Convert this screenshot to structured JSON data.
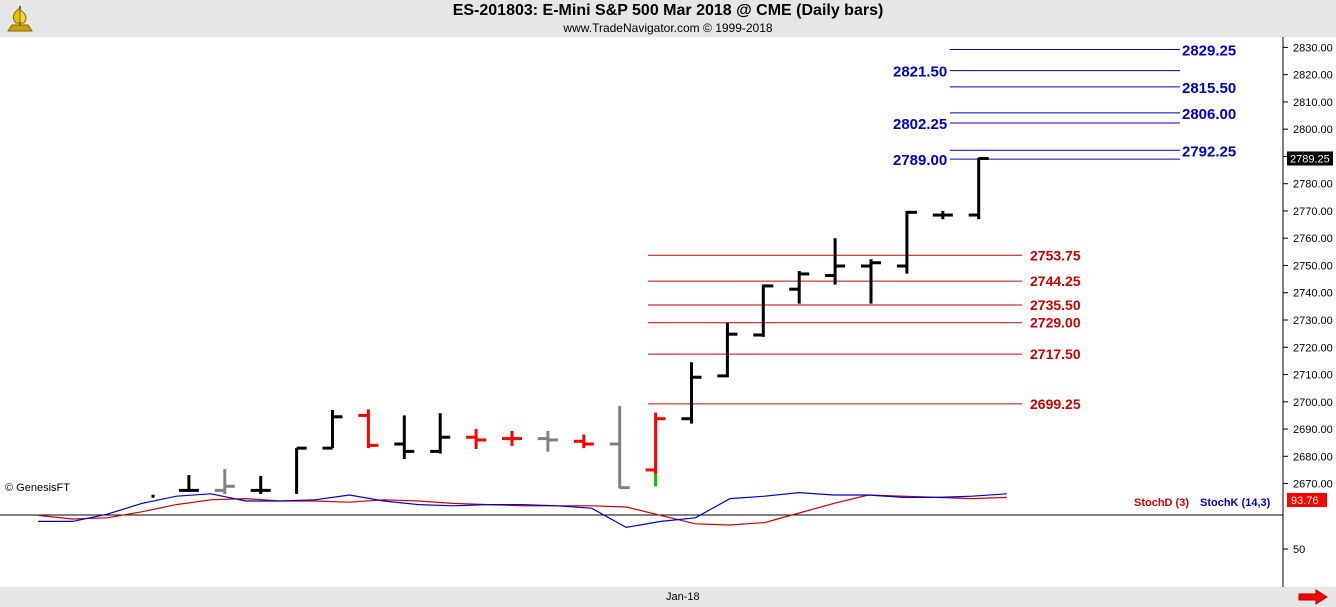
{
  "header": {
    "title": "ES-201803:  E-Mini S&P 500 Mar 2018 @ CME  (Daily bars)",
    "subtitle": "www.TradeNavigator.com © 1999-2018"
  },
  "watermark": "© GenesisFT",
  "footer": {
    "date_label": "Jan-18"
  },
  "colors": {
    "header_bg": "#e6e6e6",
    "up_bar": "#000000",
    "down_bar": "#ff0000",
    "neutral_bar": "#808080",
    "level_blue": "#0000cc",
    "level_red": "#cc0000",
    "stoch_d": "#cc0000",
    "stoch_k": "#0000cc",
    "last_price_bg": "#000000",
    "stoch_value_bg": "#ff0000"
  },
  "chart_data": [
    {
      "type": "ohlc",
      "title": "ES-201803:  E-Mini S&P 500 Mar 2018 @ CME  (Daily bars)",
      "ylim": [
        2664,
        2834
      ],
      "y_ticks": [
        "2830.00",
        "2820.00",
        "2810.00",
        "2800.00",
        "2790.00",
        "2780.00",
        "2770.00",
        "2760.00",
        "2750.00",
        "2740.00",
        "2730.00",
        "2720.00",
        "2710.00",
        "2700.00",
        "2690.00",
        "2680.00",
        "2670.00"
      ],
      "y_tick_values": [
        2830,
        2820,
        2810,
        2800,
        2790,
        2780,
        2770,
        2760,
        2750,
        2740,
        2730,
        2720,
        2710,
        2700,
        2690,
        2680,
        2670
      ],
      "last_price_label": "2789.25",
      "last_price": 2789.25,
      "x_label": "Jan-18",
      "bars": [
        {
          "i": 0,
          "o": null,
          "h": 2665.9,
          "l": 2664.8,
          "c": null,
          "color": "black"
        },
        {
          "i": 1,
          "o": 2667.5,
          "h": 2673.1,
          "l": 2666.9,
          "c": 2667.5,
          "color": "black"
        },
        {
          "i": 2,
          "o": 2667.5,
          "h": 2675.3,
          "l": 2666.2,
          "c": 2669.0,
          "color": "gray"
        },
        {
          "i": 3,
          "o": 2667.5,
          "h": 2672.8,
          "l": 2666.2,
          "c": 2667.5,
          "color": "black"
        },
        {
          "i": 4,
          "o": null,
          "h": 2683.0,
          "l": 2666.2,
          "c": 2683.0,
          "color": "black"
        },
        {
          "i": 5,
          "o": 2683.0,
          "h": 2697.0,
          "l": 2683.0,
          "c": 2694.5,
          "color": "black"
        },
        {
          "i": 6,
          "o": 2695.0,
          "h": 2697.2,
          "l": 2683.0,
          "c": 2684.0,
          "color": "red"
        },
        {
          "i": 7,
          "o": 2684.5,
          "h": 2695.0,
          "l": 2679.0,
          "c": 2681.8,
          "color": "black"
        },
        {
          "i": 8,
          "o": 2681.8,
          "h": 2695.8,
          "l": 2681.0,
          "c": 2687.0,
          "color": "black"
        },
        {
          "i": 9,
          "o": 2687.0,
          "h": 2690.0,
          "l": 2682.7,
          "c": 2686.0,
          "color": "red"
        },
        {
          "i": 10,
          "o": 2686.5,
          "h": 2689.3,
          "l": 2683.8,
          "c": 2686.5,
          "color": "red"
        },
        {
          "i": 11,
          "o": 2686.5,
          "h": 2689.3,
          "l": 2681.7,
          "c": 2686.0,
          "color": "gray"
        },
        {
          "i": 12,
          "o": 2685.5,
          "h": 2688.0,
          "l": 2683.0,
          "c": 2684.5,
          "color": "red"
        },
        {
          "i": 13,
          "o": 2684.5,
          "h": 2698.5,
          "l": 2668.3,
          "c": 2668.5,
          "color": "gray"
        },
        {
          "i": 14,
          "o": 2675.0,
          "h": 2696.0,
          "l": 2669.0,
          "c": 2693.8,
          "color": "red"
        },
        {
          "i": 15,
          "o": 2693.8,
          "h": 2714.5,
          "l": 2692.0,
          "c": 2709.0,
          "color": "black"
        },
        {
          "i": 16,
          "o": 2709.5,
          "h": 2729.0,
          "l": 2709.0,
          "c": 2724.8,
          "color": "black"
        },
        {
          "i": 17,
          "o": 2724.5,
          "h": 2743.0,
          "l": 2723.8,
          "c": 2742.5,
          "color": "black"
        },
        {
          "i": 18,
          "o": 2741.3,
          "h": 2748.0,
          "l": 2736.0,
          "c": 2746.9,
          "color": "black"
        },
        {
          "i": 19,
          "o": 2746.3,
          "h": 2760.0,
          "l": 2743.0,
          "c": 2749.8,
          "color": "black"
        },
        {
          "i": 20,
          "o": 2749.8,
          "h": 2752.3,
          "l": 2736.0,
          "c": 2751.0,
          "color": "black"
        },
        {
          "i": 21,
          "o": 2749.8,
          "h": 2770.0,
          "l": 2747.0,
          "c": 2769.5,
          "color": "black"
        },
        {
          "i": 22,
          "o": 2768.5,
          "h": 2770.0,
          "l": 2767.0,
          "c": 2768.5,
          "color": "black"
        },
        {
          "i": 23,
          "o": 2768.5,
          "h": 2789.5,
          "l": 2767.0,
          "c": 2789.25,
          "color": "black"
        }
      ],
      "levels_blue": [
        {
          "value": 2829.25,
          "label": "2829.25",
          "side": "right"
        },
        {
          "value": 2821.5,
          "label": "2821.50",
          "side": "left"
        },
        {
          "value": 2815.5,
          "label": "2815.50",
          "side": "right"
        },
        {
          "value": 2806.0,
          "label": "2806.00",
          "side": "right"
        },
        {
          "value": 2802.25,
          "label": "2802.25",
          "side": "left"
        },
        {
          "value": 2792.25,
          "label": "2792.25",
          "side": "right"
        },
        {
          "value": 2789.0,
          "label": "2789.00",
          "side": "left"
        }
      ],
      "levels_red": [
        {
          "value": 2753.75,
          "label": "2753.75"
        },
        {
          "value": 2744.25,
          "label": "2744.25"
        },
        {
          "value": 2735.5,
          "label": "2735.50"
        },
        {
          "value": 2729.0,
          "label": "2729.00"
        },
        {
          "value": 2717.5,
          "label": "2717.50"
        },
        {
          "value": 2699.25,
          "label": "2699.25"
        }
      ]
    },
    {
      "type": "line",
      "title": "",
      "ylim": [
        0,
        100
      ],
      "y_ticks": [
        "50"
      ],
      "y_tick_values": [
        50
      ],
      "reference_line": 80,
      "value_label": "93.76",
      "legend": [
        "StochD (3)",
        "StochK (14,3)"
      ],
      "series": [
        {
          "name": "StochD (3)",
          "color": "#cc0000",
          "points": [
            [
              0,
              78
            ],
            [
              1,
              75
            ],
            [
              2,
              76
            ],
            [
              3,
              81
            ],
            [
              4,
              87
            ],
            [
              5,
              91
            ],
            [
              6,
              92
            ],
            [
              7,
              90
            ],
            [
              8,
              90
            ],
            [
              9,
              89
            ],
            [
              10,
              91
            ],
            [
              11,
              90
            ],
            [
              12,
              88
            ],
            [
              13,
              87
            ],
            [
              14,
              86
            ],
            [
              15,
              86
            ],
            [
              16,
              86
            ],
            [
              17,
              85
            ],
            [
              18,
              78
            ],
            [
              19,
              71
            ],
            [
              20,
              70
            ],
            [
              21,
              72
            ],
            [
              22,
              80
            ],
            [
              23,
              88
            ],
            [
              24,
              95
            ],
            [
              25,
              94
            ],
            [
              26,
              93
            ],
            [
              27,
              92
            ],
            [
              28,
              93
            ]
          ]
        },
        {
          "name": "StochK (14,3)",
          "color": "#0000cc",
          "points": [
            [
              0,
              73
            ],
            [
              1,
              73
            ],
            [
              2,
              79
            ],
            [
              3,
              88
            ],
            [
              4,
              94
            ],
            [
              5,
              96
            ],
            [
              6,
              90
            ],
            [
              7,
              90
            ],
            [
              8,
              91
            ],
            [
              9,
              95
            ],
            [
              10,
              90
            ],
            [
              11,
              87
            ],
            [
              12,
              86
            ],
            [
              13,
              87
            ],
            [
              14,
              87
            ],
            [
              15,
              86
            ],
            [
              16,
              84
            ],
            [
              17,
              68
            ],
            [
              18,
              73
            ],
            [
              19,
              76
            ],
            [
              20,
              92
            ],
            [
              21,
              94
            ],
            [
              22,
              97
            ],
            [
              23,
              95
            ],
            [
              24,
              95
            ],
            [
              25,
              93
            ],
            [
              26,
              93
            ],
            [
              27,
              94
            ],
            [
              28,
              96
            ]
          ]
        }
      ]
    }
  ]
}
